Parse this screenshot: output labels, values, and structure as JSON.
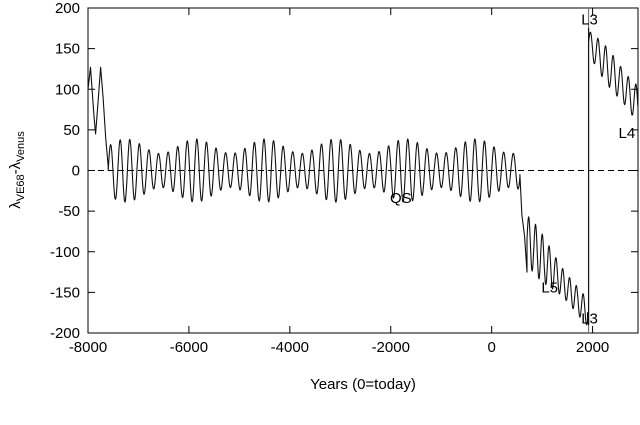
{
  "chart_data": {
    "type": "line",
    "title": "",
    "xlabel": "Years (0=today)",
    "ylabel": {
      "base": "λ",
      "sub1": "VE68",
      "mid": "-λ",
      "sub2": "Venus"
    },
    "xlim": [
      -8000,
      2900
    ],
    "ylim": [
      -200,
      200
    ],
    "x_ticks": [
      -8000,
      -6000,
      -4000,
      -2000,
      0,
      2000
    ],
    "y_ticks": [
      -200,
      -150,
      -100,
      -50,
      0,
      50,
      100,
      150,
      200
    ],
    "grid": false,
    "reference_line": {
      "y": 0,
      "style": "dashed"
    },
    "vertical_marker": {
      "x": 1920
    },
    "annotations": [
      {
        "text": "QS",
        "x": -1800,
        "y": -40
      },
      {
        "text": "L5",
        "x": 1150,
        "y": -150
      },
      {
        "text": "L3",
        "x": 1940,
        "y": 180
      },
      {
        "text": "L3",
        "x": 1940,
        "y": -188
      },
      {
        "text": "L4",
        "x": 2680,
        "y": 40
      }
    ],
    "segments": [
      {
        "kind": "fixed",
        "points": [
          [
            -8000,
            100
          ],
          [
            -7950,
            127
          ],
          [
            -7880,
            65
          ],
          [
            -7850,
            45
          ],
          [
            -7800,
            85
          ],
          [
            -7750,
            127
          ],
          [
            -7700,
            90
          ],
          [
            -7650,
            40
          ],
          [
            -7600,
            5
          ]
        ]
      },
      {
        "kind": "oscillation",
        "x_start": -7600,
        "x_end": 560,
        "period": 190,
        "trend_start": 0,
        "trend_end": 0,
        "amp_start": 30,
        "amp_end": 30,
        "amp_variation": 0.3
      },
      {
        "kind": "fixed",
        "points": [
          [
            560,
            -5
          ],
          [
            600,
            -55
          ],
          [
            650,
            -80
          ],
          [
            700,
            -125
          ]
        ]
      },
      {
        "kind": "oscillation",
        "x_start": 700,
        "x_end": 1900,
        "period": 135,
        "trend_start": -85,
        "trend_end": -175,
        "amp_start": 30,
        "amp_end": 14,
        "amp_variation": 0.15
      },
      {
        "kind": "fixed",
        "points": [
          [
            1900,
            -175
          ],
          [
            1920,
            -190
          ]
        ]
      },
      {
        "kind": "vertical",
        "x": 1920,
        "y_from": -190,
        "y_to": 175
      },
      {
        "kind": "oscillation",
        "x_start": 1920,
        "x_end": 2900,
        "period": 150,
        "trend_start": 158,
        "trend_end": 80,
        "amp_start": 14,
        "amp_end": 28,
        "amp_variation": 0.2
      }
    ]
  }
}
